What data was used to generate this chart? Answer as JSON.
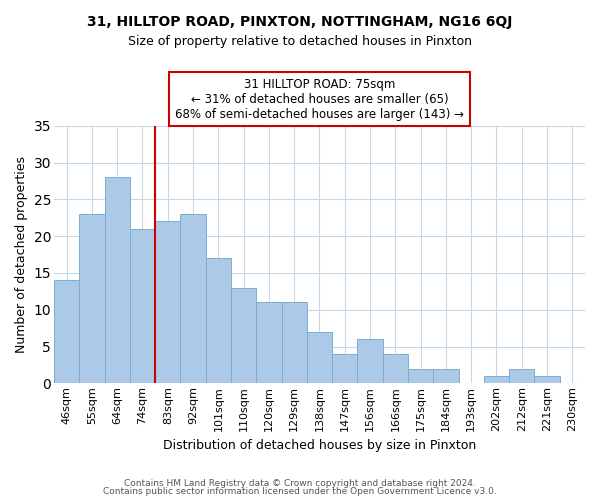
{
  "title": "31, HILLTOP ROAD, PINXTON, NOTTINGHAM, NG16 6QJ",
  "subtitle": "Size of property relative to detached houses in Pinxton",
  "xlabel": "Distribution of detached houses by size in Pinxton",
  "ylabel": "Number of detached properties",
  "bar_labels": [
    "46sqm",
    "55sqm",
    "64sqm",
    "74sqm",
    "83sqm",
    "92sqm",
    "101sqm",
    "110sqm",
    "120sqm",
    "129sqm",
    "138sqm",
    "147sqm",
    "156sqm",
    "166sqm",
    "175sqm",
    "184sqm",
    "193sqm",
    "202sqm",
    "212sqm",
    "221sqm",
    "230sqm"
  ],
  "bar_heights": [
    14,
    23,
    28,
    21,
    22,
    23,
    17,
    13,
    11,
    11,
    7,
    4,
    6,
    4,
    2,
    2,
    0,
    1,
    2,
    1,
    0
  ],
  "bar_color": "#adc9e8",
  "bar_edge_color": "#7aaed0",
  "vline_color": "#cc0000",
  "vline_bar_index": 3,
  "ylim": [
    0,
    35
  ],
  "yticks": [
    0,
    5,
    10,
    15,
    20,
    25,
    30,
    35
  ],
  "annotation_title": "31 HILLTOP ROAD: 75sqm",
  "annotation_line1": "← 31% of detached houses are smaller (65)",
  "annotation_line2": "68% of semi-detached houses are larger (143) →",
  "annotation_box_color": "#ffffff",
  "annotation_box_edge": "#cc0000",
  "footer1": "Contains HM Land Registry data © Crown copyright and database right 2024.",
  "footer2": "Contains public sector information licensed under the Open Government Licence v3.0.",
  "background_color": "#ffffff",
  "grid_color": "#c8d8e8",
  "title_fontsize": 10,
  "subtitle_fontsize": 9,
  "xlabel_fontsize": 9,
  "ylabel_fontsize": 9,
  "tick_fontsize": 8,
  "footer_fontsize": 6.5,
  "annot_fontsize": 8.5
}
